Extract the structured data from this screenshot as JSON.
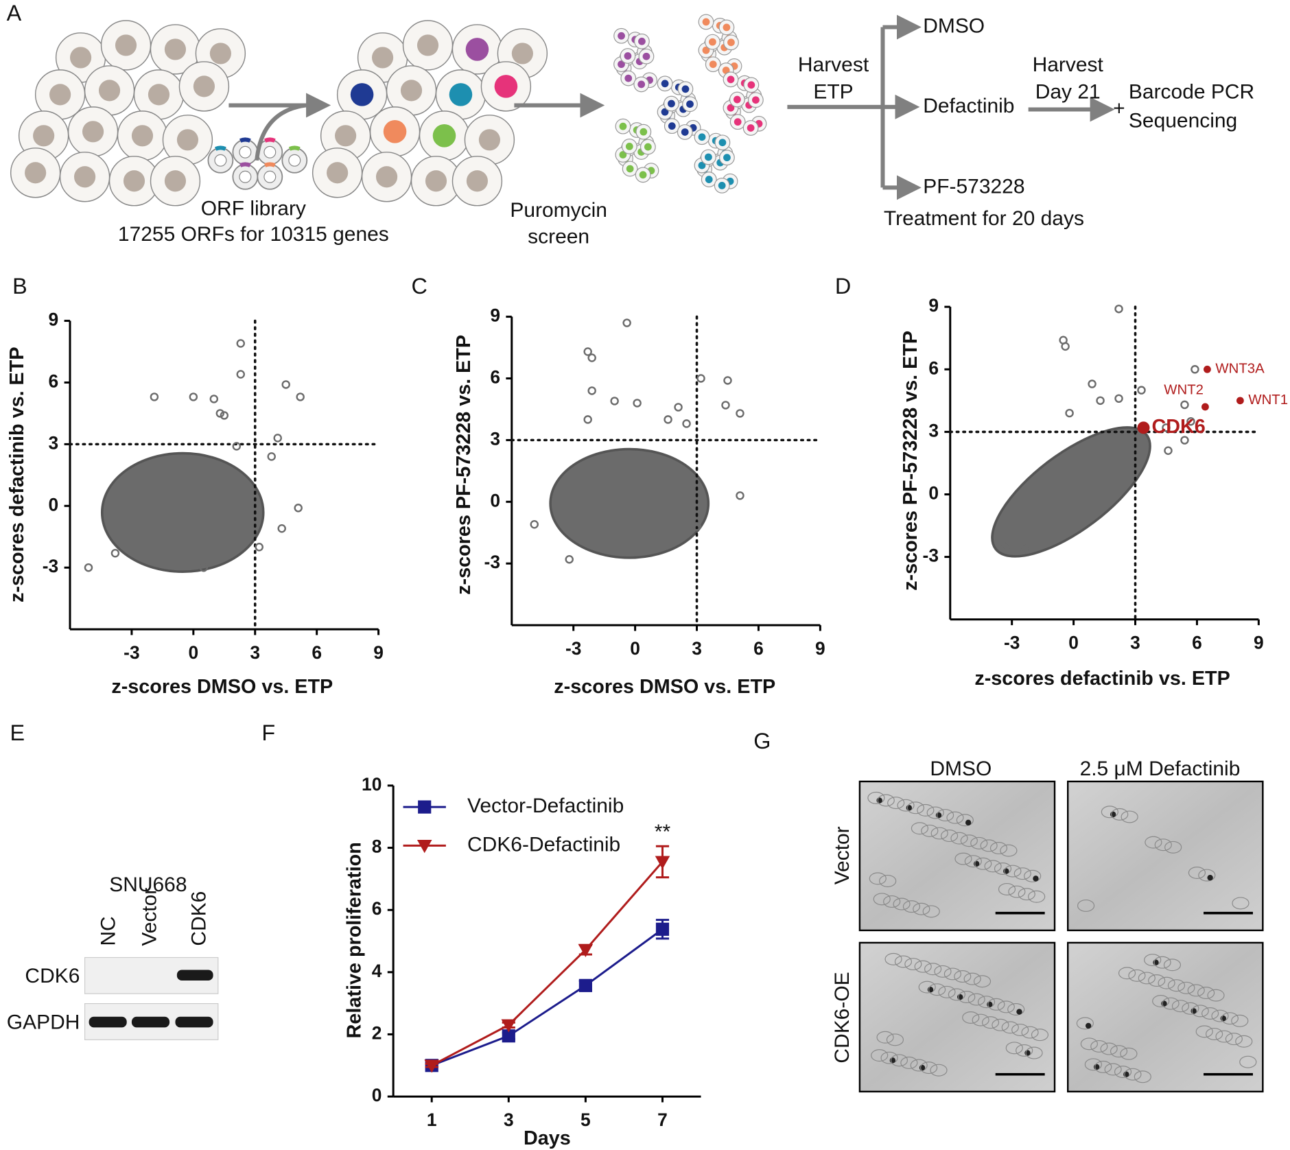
{
  "panel_labels": [
    "A",
    "B",
    "C",
    "D",
    "E",
    "F",
    "G"
  ],
  "panel_a": {
    "library": "ORF library",
    "library_size": "17255 ORFs for 10315 genes",
    "selection": [
      "Puromycin",
      "screen"
    ],
    "harvest1": [
      "Harvest",
      "ETP"
    ],
    "arms": [
      "DMSO",
      "Defactinib",
      "PF-573228"
    ],
    "treatment": "Treatment for 20 days",
    "harvest2": [
      "Harvest",
      "Day 21"
    ],
    "plus": "+",
    "readout": [
      "Barcode PCR",
      "Sequencing"
    ]
  },
  "chart_data": [
    {
      "type": "scatter",
      "x_label": "z-scores DMSO vs. ETP",
      "y_label": "z-scores defactinib vs. ETP",
      "xlim": [
        -6,
        9
      ],
      "ylim": [
        -6,
        9
      ],
      "xticks": [
        -3,
        0,
        3,
        6,
        9
      ],
      "yticks": [
        -3,
        0,
        3,
        6,
        9
      ],
      "thresholds": {
        "x": 3,
        "y": 3
      },
      "color": "#6b6b6b",
      "x": [
        4.5,
        5.2,
        2.3,
        2.3,
        1.0,
        0.0,
        -1.9,
        1.5,
        4.1,
        2.1,
        3.8,
        5.1,
        4.3,
        3.2,
        -5.1,
        -3.8,
        0.5,
        1.3
      ],
      "values": [
        5.9,
        5.3,
        6.4,
        7.9,
        5.2,
        5.3,
        5.3,
        4.4,
        3.3,
        2.9,
        2.4,
        -0.1,
        -1.1,
        -2.0,
        -3.0,
        -2.3,
        -3.0,
        4.5
      ]
    },
    {
      "type": "scatter",
      "x_label": "z-scores DMSO vs. ETP",
      "y_label": "z-scores PF-573228 vs. ETP",
      "xlim": [
        -6,
        9
      ],
      "ylim": [
        -6,
        9
      ],
      "xticks": [
        -3,
        0,
        3,
        6,
        9
      ],
      "yticks": [
        -3,
        0,
        3,
        6,
        9
      ],
      "thresholds": {
        "x": 3,
        "y": 3
      },
      "color": "#6b6b6b",
      "x": [
        -0.4,
        -2.3,
        -2.1,
        -2.1,
        3.2,
        4.5,
        5.1,
        4.4,
        -1.0,
        2.1,
        0.1,
        -2.3,
        -4.9,
        5.1,
        3.0,
        -3.2,
        1.6,
        2.5
      ],
      "values": [
        8.7,
        7.3,
        7.0,
        5.4,
        6.0,
        5.9,
        4.3,
        4.7,
        4.9,
        4.6,
        4.8,
        4.0,
        -1.1,
        0.3,
        -1.2,
        -2.8,
        4.0,
        3.8
      ]
    },
    {
      "type": "scatter",
      "x_label": "z-scores defactinib vs. ETP",
      "y_label": "z-scores PF-573228 vs. ETP",
      "xlim": [
        -6,
        9
      ],
      "ylim": [
        -6,
        9
      ],
      "xticks": [
        -3,
        0,
        3,
        6,
        9
      ],
      "yticks": [
        -3,
        0,
        3,
        6,
        9
      ],
      "thresholds": {
        "x": 3,
        "y": 3
      },
      "color": "#6b6b6b",
      "x": [
        2.2,
        -0.5,
        -0.4,
        0.9,
        1.3,
        2.2,
        5.9,
        5.4,
        4.5,
        5.7,
        5.4,
        4.6,
        3.3,
        -3.3,
        -2.4,
        -0.2
      ],
      "values": [
        8.9,
        7.4,
        7.1,
        5.3,
        4.5,
        4.6,
        6.0,
        4.3,
        3.2,
        3.5,
        2.6,
        2.1,
        5.0,
        -2.5,
        -2.6,
        3.9
      ],
      "highlight": {
        "color": "#b01c1c",
        "labels": [
          "WNT3A",
          "WNT2",
          "WNT1",
          "CDK6"
        ],
        "x": [
          6.5,
          6.4,
          8.1,
          3.4
        ],
        "values": [
          6.0,
          4.2,
          4.5,
          3.2
        ]
      }
    },
    {
      "type": "line",
      "x_label": "Days",
      "y_label": "Relative proliferation",
      "xlim": [
        0,
        8
      ],
      "ylim": [
        0,
        10
      ],
      "xticks": [
        1,
        3,
        5,
        7
      ],
      "yticks": [
        0,
        2,
        4,
        6,
        8,
        10
      ],
      "x": [
        1,
        3,
        5,
        7
      ],
      "annotation": "**",
      "series": [
        {
          "name": "Vector-Defactinib",
          "color": "#1c1c8c",
          "marker": "square",
          "values": [
            1.0,
            1.95,
            3.57,
            5.38
          ],
          "errors": [
            0.05,
            0.1,
            0.15,
            0.3
          ]
        },
        {
          "name": "CDK6-Defactinib",
          "color": "#b01c1c",
          "marker": "triangle",
          "values": [
            1.0,
            2.3,
            4.72,
            7.55
          ],
          "errors": [
            0.05,
            0.08,
            0.15,
            0.5
          ]
        }
      ]
    }
  ],
  "panel_e": {
    "cell_line": "SNU668",
    "lanes": [
      "NC",
      "Vector",
      "CDK6"
    ],
    "rows": [
      "CDK6",
      "GAPDH"
    ]
  },
  "panel_g": {
    "columns": [
      "DMSO",
      "2.5 μM Defactinib"
    ],
    "rows": [
      "Vector",
      "CDK6-OE"
    ]
  }
}
